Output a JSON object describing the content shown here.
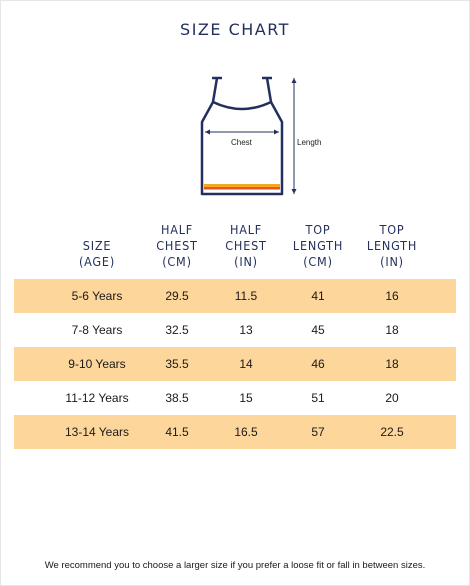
{
  "title": "SIZE CHART",
  "diagram": {
    "chest_label": "Chest",
    "length_label": "Length",
    "outline_color": "#23305e",
    "hem_colors": [
      "#f5a623",
      "#e8551f"
    ]
  },
  "table": {
    "shade_color": "#fcd69a",
    "headers": [
      "SIZE\n(AGE)",
      "HALF\nCHEST\n(CM)",
      "HALF\nCHEST\n(IN)",
      "TOP\nLENGTH\n(CM)",
      "TOP\nLENGTH\n(IN)"
    ],
    "rows": [
      [
        "5-6 Years",
        "29.5",
        "11.5",
        "41",
        "16"
      ],
      [
        "7-8 Years",
        "32.5",
        "13",
        "45",
        "18"
      ],
      [
        "9-10 Years",
        "35.5",
        "14",
        "46",
        "18"
      ],
      [
        "11-12 Years",
        "38.5",
        "15",
        "51",
        "20"
      ],
      [
        "13-14 Years",
        "41.5",
        "16.5",
        "57",
        "22.5"
      ]
    ]
  },
  "footnote": "We recommend you to choose a larger size if you prefer a loose fit or fall in between sizes."
}
